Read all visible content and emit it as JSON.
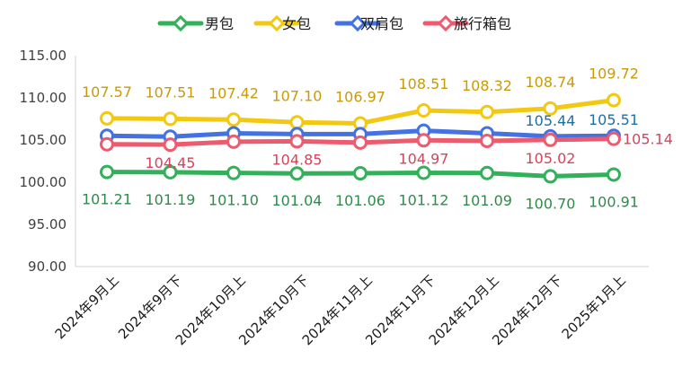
{
  "chart_data": {
    "type": "line",
    "title": "",
    "xlabel": "",
    "ylabel": "",
    "ylim": [
      90,
      115
    ],
    "yticks": [
      "90.00",
      "95.00",
      "100.00",
      "105.00",
      "110.00",
      "115.00"
    ],
    "grid": false,
    "legend_position": "top-center",
    "categories": [
      "2024年9月上",
      "2024年9月下",
      "2024年10月上",
      "2024年10月下",
      "2024年11月上",
      "2024年11月下",
      "2024年12月上",
      "2024年12月下",
      "2025年1月上"
    ],
    "series": [
      {
        "name": "男包",
        "color": "#33b15a",
        "label_color": "#2e8b4a",
        "values": [
          101.21,
          101.19,
          101.1,
          101.04,
          101.06,
          101.12,
          101.09,
          100.7,
          100.91
        ],
        "labels": [
          "101.21",
          "101.19",
          "101.10",
          "101.04",
          "101.06",
          "101.12",
          "101.09",
          "100.70",
          "100.91"
        ],
        "label_side": "below"
      },
      {
        "name": "女包",
        "color": "#f2c811",
        "label_color": "#c99a06",
        "values": [
          107.57,
          107.51,
          107.42,
          107.1,
          106.97,
          108.51,
          108.32,
          108.74,
          109.72
        ],
        "labels": [
          "107.57",
          "107.51",
          "107.42",
          "107.10",
          "106.97",
          "108.51",
          "108.32",
          "108.74",
          "109.72"
        ],
        "label_side": "above"
      },
      {
        "name": "双肩包",
        "color": "#4472e0",
        "label_color": "#1f6fa8",
        "values": [
          105.5,
          105.4,
          105.8,
          105.7,
          105.7,
          106.1,
          105.8,
          105.44,
          105.51
        ],
        "labels": [
          "",
          "",
          "",
          "",
          "",
          "",
          "",
          "105.44",
          "105.51"
        ],
        "label_side": "above"
      },
      {
        "name": "旅行箱包",
        "color": "#ec5b6e",
        "label_color": "#d4445a",
        "values": [
          104.5,
          104.45,
          104.8,
          104.85,
          104.7,
          104.97,
          104.9,
          105.02,
          105.14
        ],
        "labels": [
          "",
          "104.45",
          "",
          "104.85",
          "",
          "104.97",
          "",
          "105.02",
          "105.14"
        ],
        "label_side": "below"
      }
    ]
  }
}
